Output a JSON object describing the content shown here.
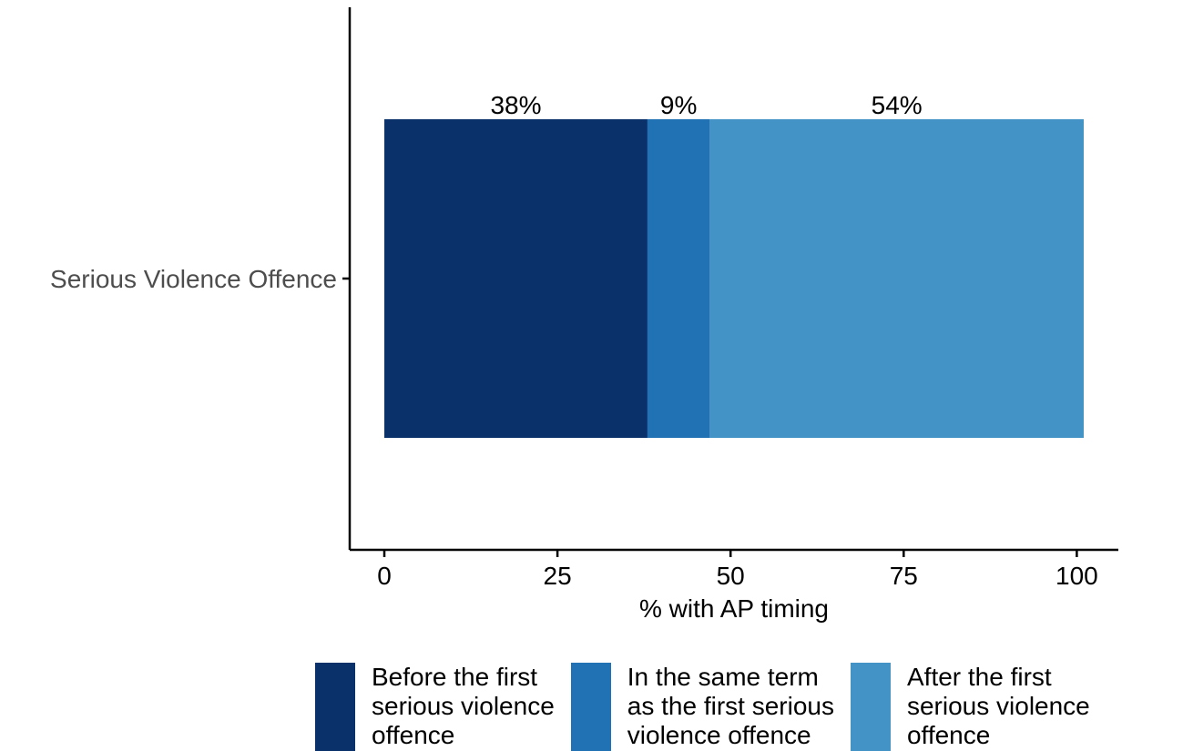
{
  "chart_data": {
    "type": "bar",
    "orientation": "horizontal",
    "stacked": true,
    "title": "",
    "xlabel": "% with AP timing",
    "ylabel": "",
    "categories": [
      "Serious Violence Offence"
    ],
    "xlim": [
      -5,
      106
    ],
    "xticks": [
      0,
      25,
      50,
      75,
      100
    ],
    "grid": false,
    "legend_position": "bottom",
    "series": [
      {
        "name": "Before the first\nserious violence\noffence",
        "values": [
          38
        ],
        "label": "38%",
        "color": "#0b316b"
      },
      {
        "name": "In the same term\nas the first serious\nviolence offence",
        "values": [
          9
        ],
        "label": "9%",
        "color": "#2171b5"
      },
      {
        "name": "After the first\nserious violence\noffence",
        "values": [
          54
        ],
        "label": "54%",
        "color": "#4393c6"
      }
    ]
  }
}
